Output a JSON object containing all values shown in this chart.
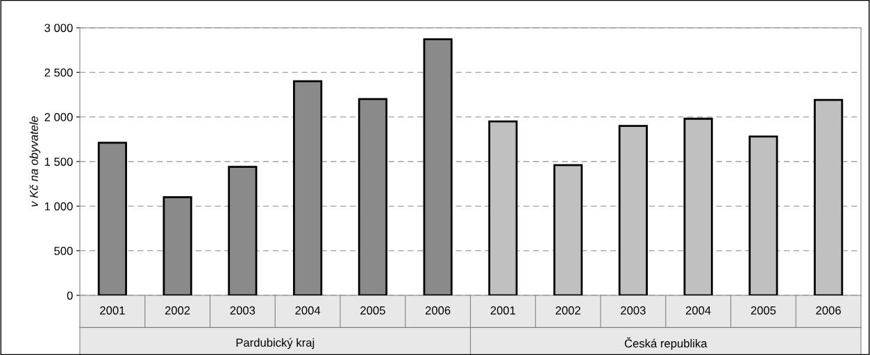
{
  "chart_data": {
    "type": "bar",
    "ylabel": "v Kč na obyvatele",
    "categories": [
      "2001",
      "2002",
      "2003",
      "2004",
      "2005",
      "2006",
      "2001",
      "2002",
      "2003",
      "2004",
      "2005",
      "2006"
    ],
    "values": [
      1710,
      1100,
      1440,
      2400,
      2200,
      2870,
      1950,
      1460,
      1900,
      1980,
      1780,
      2190
    ],
    "colors": [
      "#8a8a8a",
      "#8a8a8a",
      "#8a8a8a",
      "#8a8a8a",
      "#8a8a8a",
      "#8a8a8a",
      "#c0c0c0",
      "#c0c0c0",
      "#c0c0c0",
      "#c0c0c0",
      "#c0c0c0",
      "#c0c0c0"
    ],
    "annotations": [
      "Pardubický kraj",
      "Česká republika"
    ],
    "ylim": [
      0,
      3000
    ],
    "yticks": [
      0,
      500,
      {
        "value": 1000,
        "label": "1 000"
      },
      {
        "value": 1500,
        "label": "1 500"
      },
      {
        "value": 2000,
        "label": "2 000"
      },
      {
        "value": 2500,
        "label": "2 500"
      },
      {
        "value": 3000,
        "label": "3 000"
      }
    ],
    "grid": "y"
  }
}
